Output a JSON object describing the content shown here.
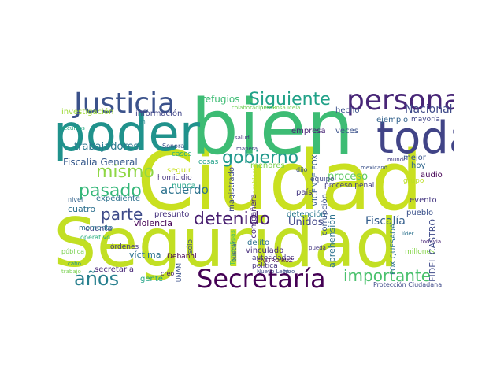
{
  "word_cloud": {
    "words": [
      {
        "text": "Ciudad",
        "color": "#c9e020",
        "size": 5,
        "orientation": "horizontal"
      },
      {
        "text": "Seguridad",
        "color": "#c2df23",
        "size": 5,
        "orientation": "horizontal"
      },
      {
        "text": "bien",
        "color": "#3dbc74",
        "size": 5,
        "orientation": "horizontal"
      },
      {
        "text": "poder",
        "color": "#20928c",
        "size": 4,
        "orientation": "horizontal"
      },
      {
        "text": "toda",
        "color": "#414487",
        "size": 4,
        "orientation": "horizontal"
      },
      {
        "text": "Justicia",
        "color": "#3b528b",
        "size": 3,
        "orientation": "horizontal"
      },
      {
        "text": "persona",
        "color": "#482677",
        "size": 3,
        "orientation": "horizontal"
      },
      {
        "text": "Secretaría",
        "color": "#440154",
        "size": 3,
        "orientation": "horizontal"
      },
      {
        "text": "Siguiente",
        "color": "#1fa187",
        "size": 2,
        "orientation": "horizontal"
      },
      {
        "text": "importante",
        "color": "#4ac16d",
        "size": 2,
        "orientation": "horizontal"
      },
      {
        "text": "detenido",
        "color": "#481f70",
        "size": 2,
        "orientation": "horizontal"
      },
      {
        "text": "gobierno",
        "color": "#1f988b",
        "size": 2,
        "orientation": "horizontal"
      },
      {
        "text": "mismo",
        "color": "#8fd744",
        "size": 2,
        "orientation": "horizontal"
      },
      {
        "text": "pasado",
        "color": "#35b779",
        "size": 2,
        "orientation": "horizontal"
      },
      {
        "text": "parte",
        "color": "#3e4a89",
        "size": 2,
        "orientation": "horizontal"
      },
      {
        "text": "años",
        "color": "#277f8e",
        "size": 2,
        "orientation": "horizontal"
      },
      {
        "text": "Nacional",
        "color": "#3e4989",
        "size": 1,
        "orientation": "horizontal"
      },
      {
        "text": "trabajadores",
        "color": "#2a788e",
        "size": 1,
        "orientation": "horizontal"
      },
      {
        "text": "acuerdo",
        "color": "#2c728e",
        "size": 1,
        "orientation": "horizontal"
      },
      {
        "text": "Fiscalía",
        "color": "#355f8d",
        "size": 1,
        "orientation": "horizontal"
      },
      {
        "text": "refugios",
        "color": "#3dbc74",
        "size": 1,
        "orientation": "horizontal"
      },
      {
        "text": "Fiscalía General",
        "color": "#375a8c",
        "size": 1,
        "orientation": "horizontal"
      },
      {
        "text": "proceso",
        "color": "#5ec962",
        "size": 1,
        "orientation": "horizontal"
      },
      {
        "text": "Unidos",
        "color": "#404688",
        "size": 1,
        "orientation": "horizontal"
      },
      {
        "text": "hecho",
        "color": "#3b528b",
        "size": 0,
        "orientation": "horizontal"
      },
      {
        "text": "ejemplo",
        "color": "#33638d",
        "size": 0,
        "orientation": "horizontal"
      },
      {
        "text": "veces",
        "color": "#3b528b",
        "size": 0,
        "orientation": "horizontal"
      },
      {
        "text": "empresa",
        "color": "#482475",
        "size": 0,
        "orientation": "horizontal"
      },
      {
        "text": "proceso penal",
        "color": "#433e85",
        "size": 0,
        "orientation": "horizontal"
      },
      {
        "text": "mejor",
        "color": "#39568c",
        "size": 0,
        "orientation": "horizontal"
      },
      {
        "text": "hoy",
        "color": "#31688e",
        "size": 0,
        "orientation": "horizontal"
      },
      {
        "text": "cuatro",
        "color": "#2d708e",
        "size": 0,
        "orientation": "horizontal"
      },
      {
        "text": "cuenta",
        "color": "#414487",
        "size": 0,
        "orientation": "horizontal"
      },
      {
        "text": "homicidio",
        "color": "#463480",
        "size": 0,
        "orientation": "horizontal"
      },
      {
        "text": "expediente",
        "color": "#2d708e",
        "size": 0,
        "orientation": "horizontal"
      },
      {
        "text": "violencia",
        "color": "#440154",
        "size": 0,
        "orientation": "horizontal"
      },
      {
        "text": "presunto",
        "color": "#46327e",
        "size": 0,
        "orientation": "horizontal"
      },
      {
        "text": "víctima",
        "color": "#2c728e",
        "size": 0,
        "orientation": "horizontal"
      },
      {
        "text": "secretaria",
        "color": "#482878",
        "size": 0,
        "orientation": "horizontal"
      },
      {
        "text": "pueblo",
        "color": "#3b528b",
        "size": 0,
        "orientation": "horizontal"
      },
      {
        "text": "evento",
        "color": "#453781",
        "size": 0,
        "orientation": "horizontal"
      },
      {
        "text": "audio",
        "color": "#440154",
        "size": 0,
        "orientation": "horizontal"
      },
      {
        "text": "detención",
        "color": "#2a788e",
        "size": 0,
        "orientation": "horizontal"
      },
      {
        "text": "país",
        "color": "#453882",
        "size": 0,
        "orientation": "horizontal"
      },
      {
        "text": "delito",
        "color": "#2d708e",
        "size": 0,
        "orientation": "horizontal"
      },
      {
        "text": "vinculado",
        "color": "#472d7b",
        "size": 0,
        "orientation": "horizontal"
      },
      {
        "text": "gente",
        "color": "#20a386",
        "size": 0,
        "orientation": "horizontal"
      },
      {
        "text": "investigación",
        "color": "#a0da39",
        "size": 0,
        "orientation": "horizontal"
      },
      {
        "text": "información",
        "color": "#404588",
        "size": 0,
        "orientation": "horizontal"
      },
      {
        "text": "seguir",
        "color": "#c8e020",
        "size": 0,
        "orientation": "horizontal"
      },
      {
        "text": "nunca",
        "color": "#20a486",
        "size": 0,
        "orientation": "horizontal"
      },
      {
        "text": "menores",
        "color": "#7ad151",
        "size": 0,
        "orientation": "horizontal"
      },
      {
        "text": "cosas",
        "color": "#1fa088",
        "size": 0,
        "orientation": "horizontal"
      },
      {
        "text": "equipo",
        "color": "#3f4788",
        "size": 0,
        "orientation": "horizontal"
      },
      {
        "text": "grupo",
        "color": "#bddf26",
        "size": 0,
        "orientation": "horizontal"
      },
      {
        "text": "mayoría",
        "color": "#404588",
        "size": 0,
        "orientation": "horizontal"
      },
      {
        "text": "millones",
        "color": "#86d549",
        "size": 0,
        "orientation": "horizontal"
      },
      {
        "text": "Sonora",
        "color": "#3b528b",
        "size": 0,
        "orientation": "horizontal"
      },
      {
        "text": "manera",
        "color": "#414487",
        "size": 0,
        "orientation": "horizontal"
      },
      {
        "text": "salud",
        "color": "#46307e",
        "size": 0,
        "orientation": "horizontal"
      },
      {
        "text": "dijo",
        "color": "#3b528b",
        "size": 0,
        "orientation": "horizontal"
      },
      {
        "text": "mundo",
        "color": "#433e85",
        "size": 0,
        "orientation": "horizontal"
      },
      {
        "text": "mexicano",
        "color": "#3b528b",
        "size": 0,
        "orientation": "horizontal"
      },
      {
        "text": "casos",
        "color": "#26ad81",
        "size": 0,
        "orientation": "horizontal"
      },
      {
        "text": "nivel",
        "color": "#33638d",
        "size": 0,
        "orientation": "horizontal"
      },
      {
        "text": "momento",
        "color": "#2c728e",
        "size": 0,
        "orientation": "horizontal"
      },
      {
        "text": "operativo",
        "color": "#29af7f",
        "size": 0,
        "orientation": "horizontal"
      },
      {
        "text": "pública",
        "color": "#7ad151",
        "size": 0,
        "orientation": "horizontal"
      },
      {
        "text": "cabo",
        "color": "#21918c",
        "size": 0,
        "orientation": "horizontal"
      },
      {
        "text": "trabajo",
        "color": "#7ad151",
        "size": 0,
        "orientation": "horizontal"
      },
      {
        "text": "órdenes",
        "color": "#453781",
        "size": 0,
        "orientation": "horizontal"
      },
      {
        "text": "recursos",
        "color": "#22a884",
        "size": 0,
        "orientation": "horizontal"
      },
      {
        "text": "creo",
        "color": "#482173",
        "size": 0,
        "orientation": "horizontal"
      },
      {
        "text": "Debanhi",
        "color": "#440154",
        "size": 0,
        "orientation": "horizontal"
      },
      {
        "text": "CASTRO RUZ",
        "color": "#440154",
        "size": 0,
        "orientation": "horizontal"
      },
      {
        "text": "autoridades",
        "color": "#453781",
        "size": 0,
        "orientation": "horizontal"
      },
      {
        "text": "política",
        "color": "#46327e",
        "size": 0,
        "orientation": "horizontal"
      },
      {
        "text": "Nuevo León",
        "color": "#3e4a89",
        "size": 0,
        "orientation": "horizontal"
      },
      {
        "text": "pueda",
        "color": "#453781",
        "size": 0,
        "orientation": "horizontal"
      },
      {
        "text": "todavía",
        "color": "#482677",
        "size": 0,
        "orientation": "horizontal"
      },
      {
        "text": "líder",
        "color": "#2c728e",
        "size": 0,
        "orientation": "horizontal"
      },
      {
        "text": "Protección Ciudadana",
        "color": "#3e4a89",
        "size": 0,
        "orientation": "horizontal"
      },
      {
        "text": "colaboración",
        "color": "#73d056",
        "size": 0,
        "orientation": "horizontal"
      },
      {
        "text": "perro",
        "color": "#6ccd5a",
        "size": 0,
        "orientation": "horizontal"
      },
      {
        "text": "Rosa Icela",
        "color": "#75d054",
        "size": 0,
        "orientation": "horizontal"
      },
      {
        "text": "hizo",
        "color": "#3b528b",
        "size": 0,
        "orientation": "horizontal"
      },
      {
        "text": "en",
        "color": "#25848e",
        "size": 0,
        "orientation": "horizontal"
      },
      {
        "text": "magistrado",
        "color": "#3e4989",
        "size": 0,
        "orientation": "vertical"
      },
      {
        "text": "compañera",
        "color": "#482878",
        "size": 0,
        "orientation": "vertical"
      },
      {
        "text": "VICENTE FOX",
        "color": "#375b8d",
        "size": 0,
        "orientation": "vertical"
      },
      {
        "text": "corrupción",
        "color": "#3b528b",
        "size": 0,
        "orientation": "vertical"
      },
      {
        "text": "aprehensión",
        "color": "#2c728e",
        "size": 0,
        "orientation": "vertical"
      },
      {
        "text": "FOX QUESADA",
        "color": "#2d708e",
        "size": 0,
        "orientation": "vertical"
      },
      {
        "text": "FIDEL CASTRO",
        "color": "#3e4a89",
        "size": 0,
        "orientation": "vertical"
      },
      {
        "text": "sólo",
        "color": "#3e4a89",
        "size": 0,
        "orientation": "vertical"
      },
      {
        "text": "UNAM",
        "color": "#3b528b",
        "size": 0,
        "orientation": "vertical"
      },
      {
        "text": "Tamaulipas",
        "color": "#50c46a",
        "size": 0,
        "orientation": "vertical"
      },
      {
        "text": "buscar",
        "color": "#3b528b",
        "size": 0,
        "orientation": "vertical"
      },
      {
        "text": "problema",
        "color": "#bddf26",
        "size": 0,
        "orientation": "vertical"
      }
    ]
  }
}
